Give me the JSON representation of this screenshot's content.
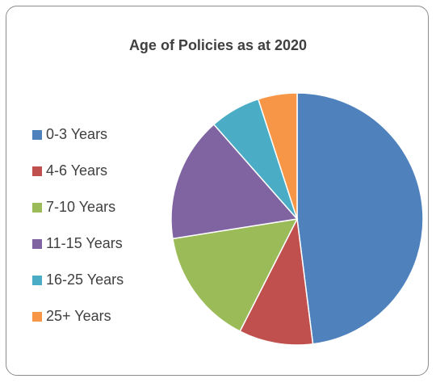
{
  "chart_data": {
    "type": "pie",
    "title": "Age of Policies as at 2020",
    "legend_position": "left",
    "categories": [
      "0-3 Years",
      "4-6 Years",
      "7-10 Years",
      "11-15 Years",
      "16-25 Years",
      "25+ Years"
    ],
    "values": [
      48,
      9.5,
      15,
      16,
      6.5,
      5
    ],
    "colors": [
      "#4f81bd",
      "#c0504d",
      "#9bbb59",
      "#8064a2",
      "#4bacc6",
      "#f79646"
    ]
  }
}
